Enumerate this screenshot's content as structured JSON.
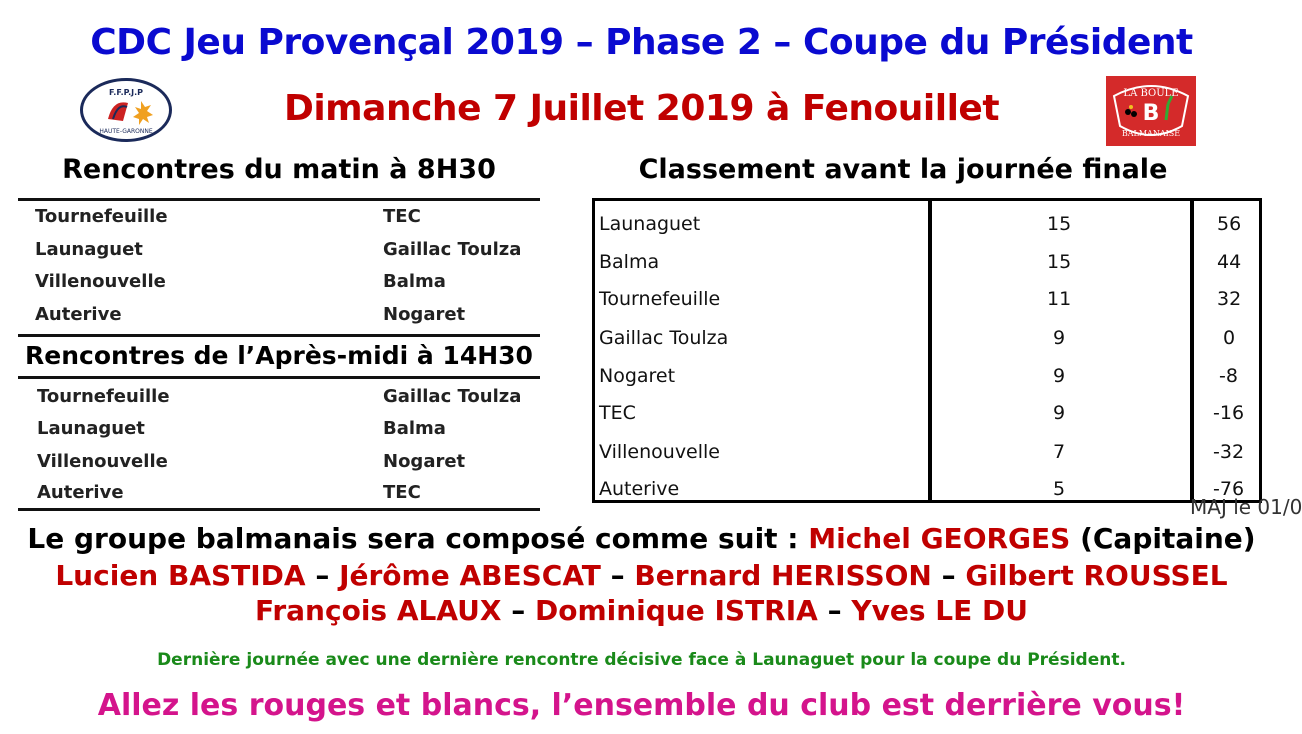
{
  "header": {
    "title": "CDC Jeu Provençal 2019 – Phase 2 – Coupe du Président",
    "subtitle": "Dimanche 7 Juillet 2019 à Fenouillet",
    "logo_left_text": "F.F.P.J.P HAUTE-GARONNE",
    "logo_right_text": "LA BOULE BALMANAISE"
  },
  "morning": {
    "title": "Rencontres du matin à 8H30",
    "matches": [
      [
        "Tournefeuille",
        "TEC"
      ],
      [
        "Launaguet",
        "Gaillac Toulza"
      ],
      [
        "Villenouvelle",
        "Balma"
      ],
      [
        "Auterive",
        "Nogaret"
      ]
    ]
  },
  "afternoon": {
    "title": "Rencontres de l’Après-midi à 14H30",
    "matches": [
      [
        "Tournefeuille",
        "Gaillac Toulza"
      ],
      [
        "Launaguet",
        "Balma"
      ],
      [
        "Villenouvelle",
        "Nogaret"
      ],
      [
        "Auterive",
        "TEC"
      ]
    ]
  },
  "standings": {
    "title": "Classement avant la journée finale",
    "rows": [
      [
        "Launaguet",
        "15",
        "56"
      ],
      [
        "Balma",
        "15",
        "44"
      ],
      [
        "Tournefeuille",
        "11",
        "32"
      ],
      [
        "Gaillac Toulza",
        "9",
        "0"
      ],
      [
        "Nogaret",
        "9",
        "-8"
      ],
      [
        "TEC",
        "9",
        "-16"
      ],
      [
        "Villenouvelle",
        "7",
        "-32"
      ],
      [
        "Auterive",
        "5",
        "-76"
      ]
    ],
    "update_note": "MAJ le 01/0"
  },
  "team": {
    "intro": "Le groupe balmanais sera composé comme suit : ",
    "captain": "Michel GEORGES",
    "captain_role": " (Capitaine)",
    "line2": [
      "Lucien BASTIDA",
      " – ",
      "Jérôme ABESCAT",
      " – ",
      "Bernard HERISSON",
      " – ",
      "Gilbert ROUSSEL"
    ],
    "line3": [
      "François ALAUX",
      " – ",
      "Dominique ISTRIA",
      " – ",
      "Yves LE DU"
    ]
  },
  "note": "Dernière journée avec une dernière rencontre décisive face à Launaguet pour la coupe du Président.",
  "slogan": "Allez les rouges et blancs, l’ensemble du club est derrière vous!",
  "colors": {
    "title": "#0a0ad0",
    "red": "#c00000",
    "green": "#1a8a1a",
    "magenta": "#d4148c"
  }
}
